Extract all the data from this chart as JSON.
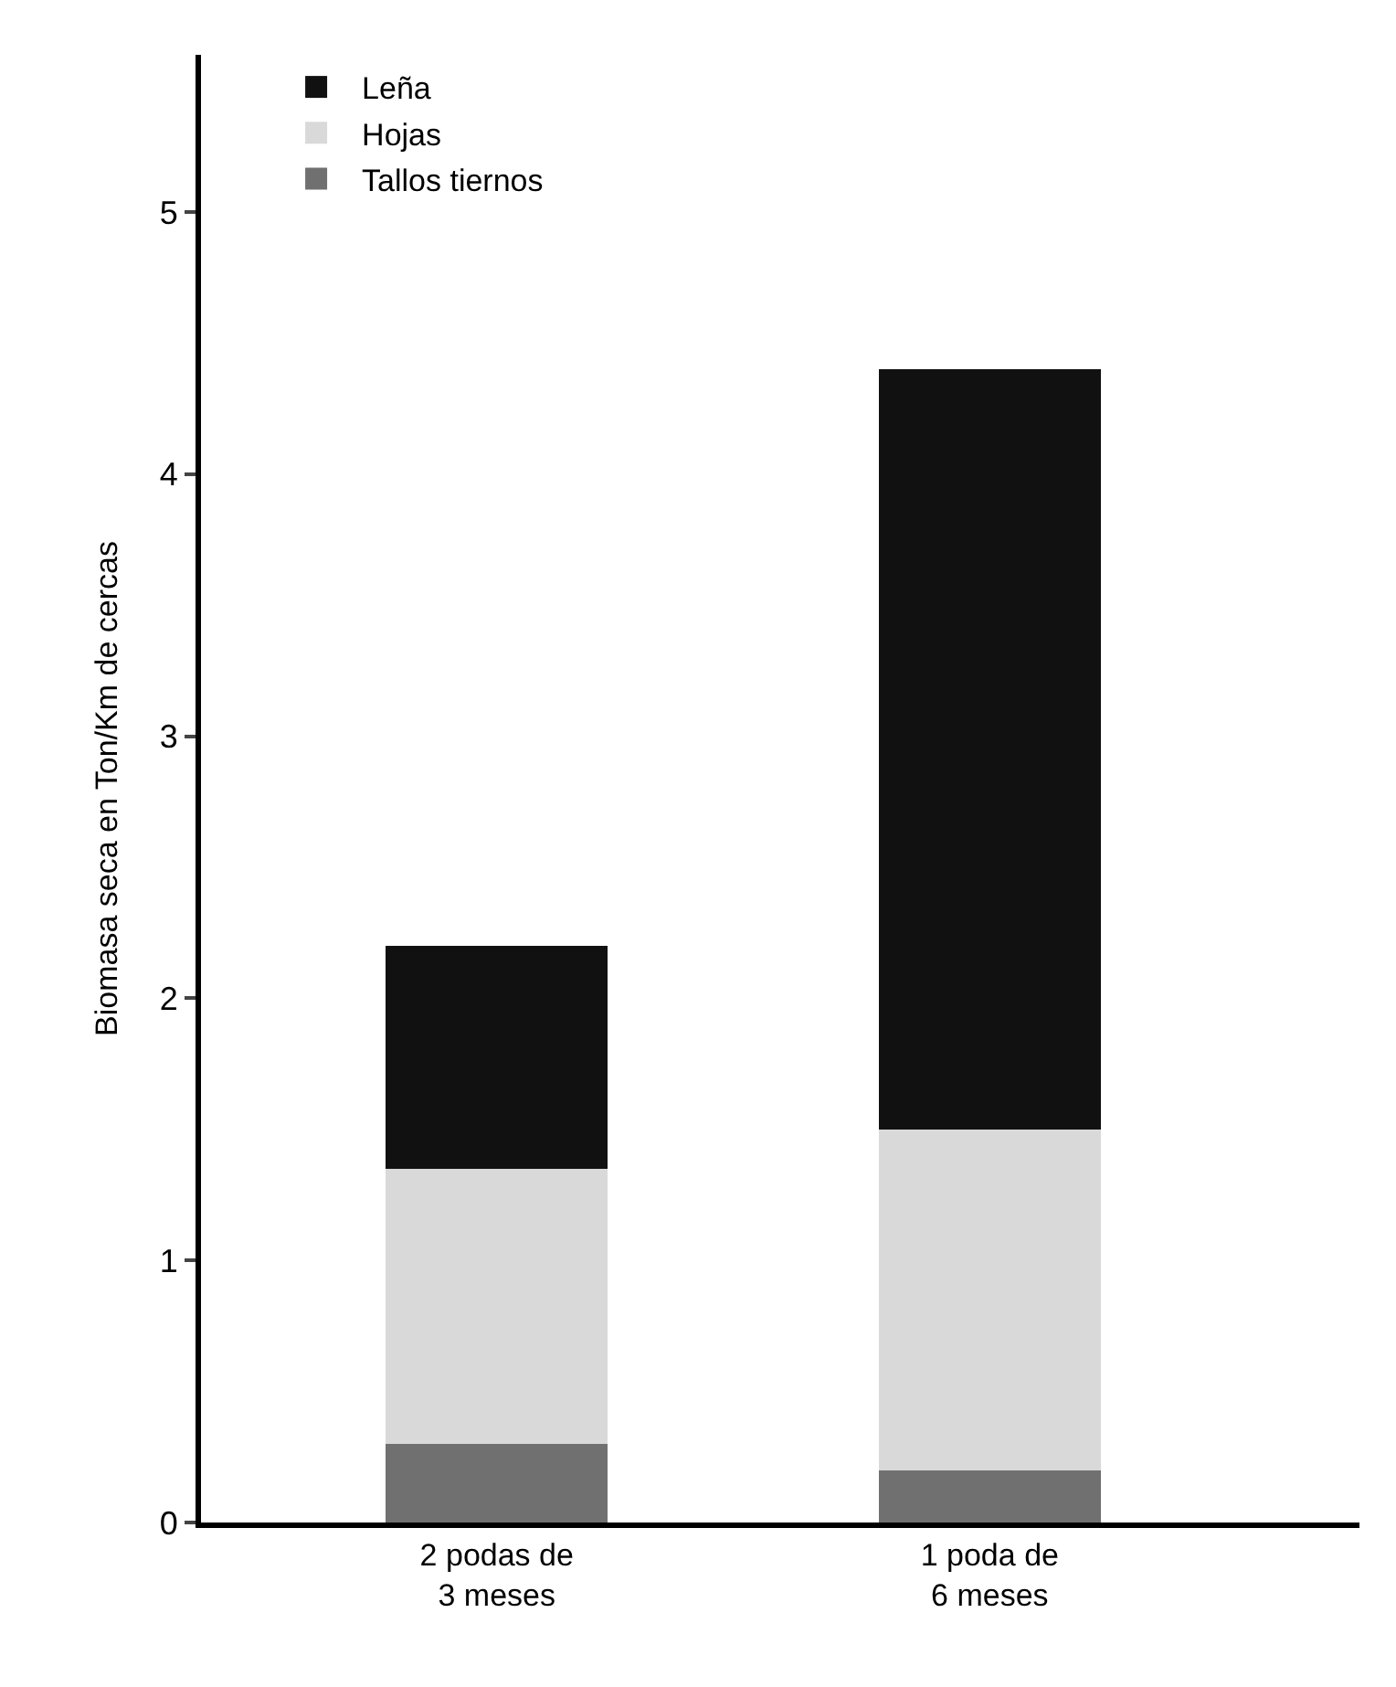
{
  "chart_data": {
    "type": "bar",
    "stacked": true,
    "ylabel": "Biomasa seca en Ton/Km de cercas",
    "categories": [
      "2 podas de\n3 meses",
      "1 poda de\n6 meses"
    ],
    "series": [
      {
        "name": "Tallos tiernos",
        "color": "#707070",
        "values": [
          0.3,
          0.2
        ]
      },
      {
        "name": "Hojas",
        "color": "#d9d9d9",
        "values": [
          1.05,
          1.3
        ]
      },
      {
        "name": "Leña",
        "color": "#111111",
        "values": [
          0.85,
          2.9
        ]
      }
    ],
    "ylim": [
      0,
      5.6
    ],
    "yticks": [
      0,
      1,
      2,
      3,
      4,
      5
    ],
    "grid": false,
    "legend": "top left"
  }
}
